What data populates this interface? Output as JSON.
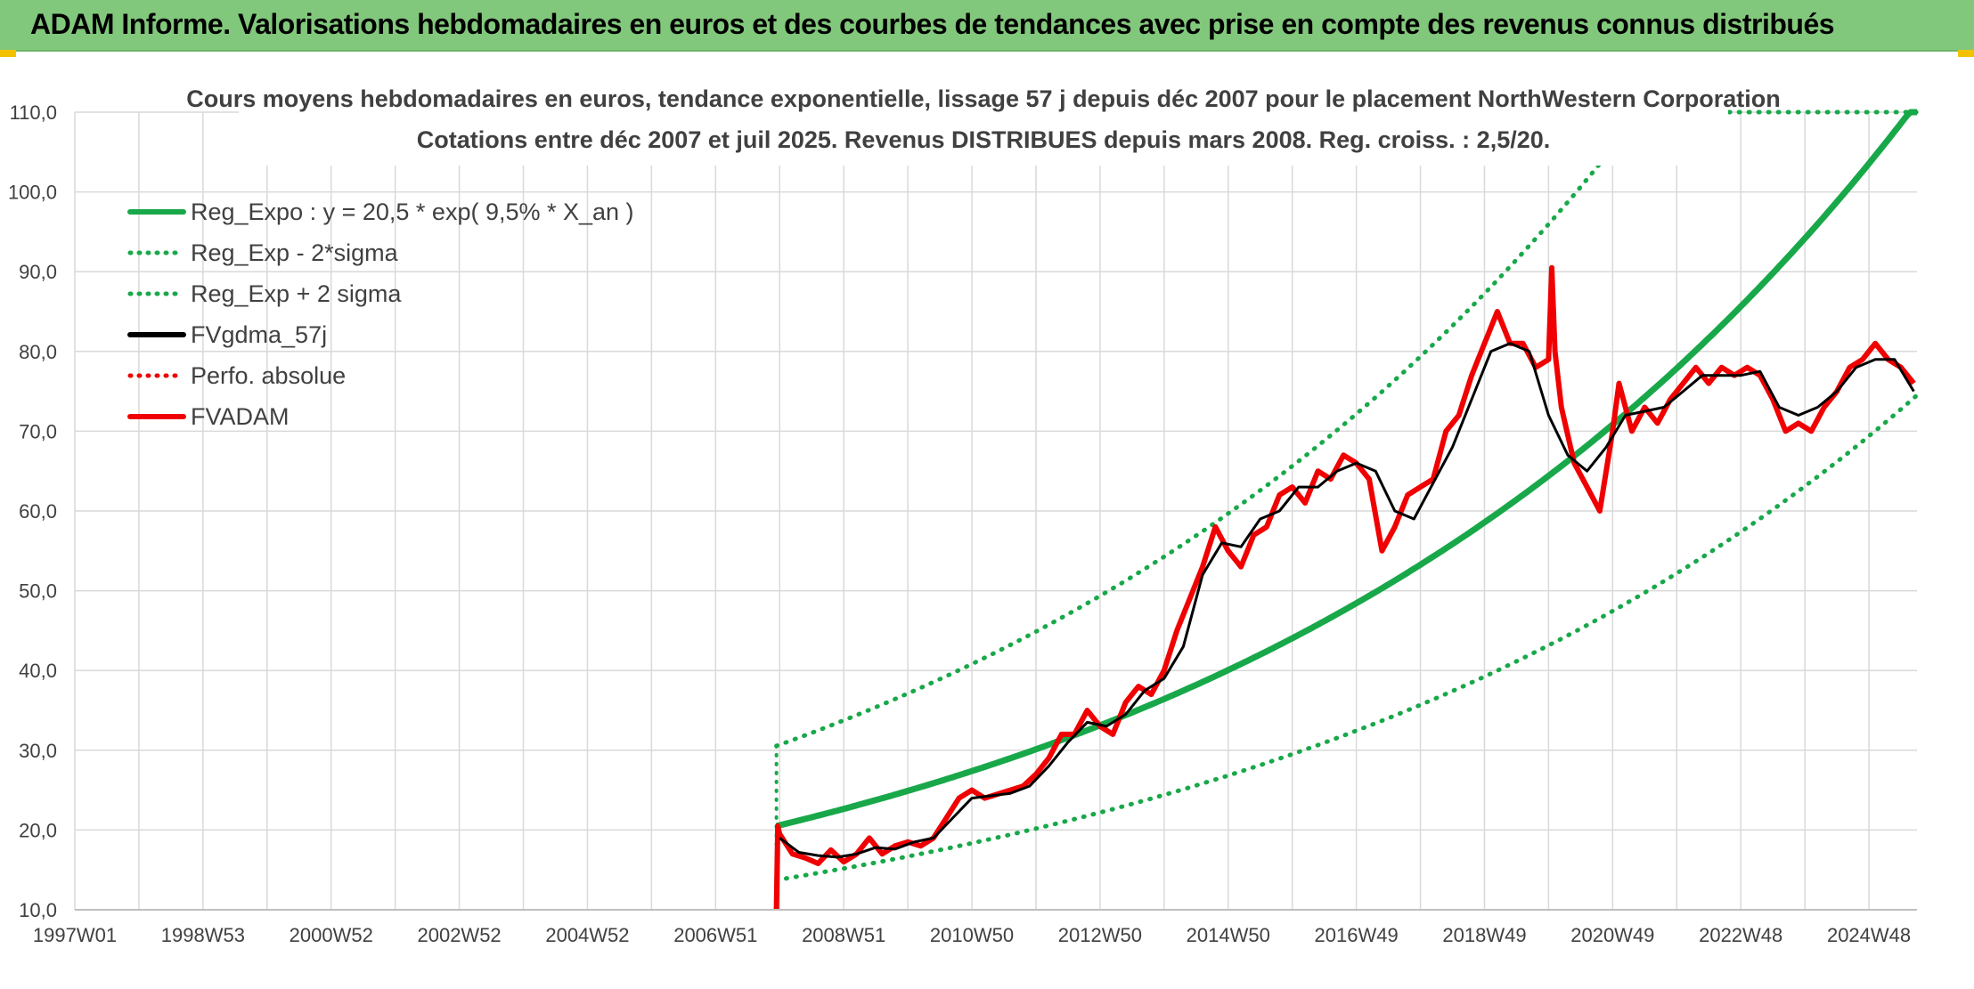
{
  "banner": {
    "title": "ADAM Informe. Valorisations hebdomadaires en euros et des courbes de tendances avec prise en compte des revenus connus distribués"
  },
  "colors": {
    "banner_bg": "#82c87c",
    "reg_green": "#18a84a",
    "series_black": "#000000",
    "series_red": "#f00000",
    "grid": "#d9d9d9",
    "axis_text": "#404040"
  },
  "chart_data": {
    "type": "line",
    "title": "Cours moyens hebdomadaires en euros, tendance exponentielle, lissage 57 j depuis déc 2007 pour le placement NorthWestern Corporation",
    "subtitle": "Cotations entre déc 2007 et juil 2025. Revenus DISTRIBUES depuis mars 2008. Reg. croiss. : 2,5/20.",
    "xlabel": "",
    "ylabel": "",
    "x_tick_labels": [
      "1997W01",
      "1998W53",
      "2000W52",
      "2002W52",
      "2004W52",
      "2006W51",
      "2008W51",
      "2010W50",
      "2012W50",
      "2014W50",
      "2016W49",
      "2018W49",
      "2020W49",
      "2022W48",
      "2024W48"
    ],
    "x_tick_years": [
      1997.0,
      1999.0,
      2001.0,
      2003.0,
      2005.0,
      2007.0,
      2009.0,
      2011.0,
      2013.0,
      2015.0,
      2017.0,
      2019.0,
      2021.0,
      2023.0,
      2025.0
    ],
    "x_range": [
      1997.0,
      2025.75
    ],
    "y_tick_labels": [
      "10,0",
      "20,0",
      "30,0",
      "40,0",
      "50,0",
      "60,0",
      "70,0",
      "80,0",
      "90,0",
      "100,0",
      "110,0"
    ],
    "ylim": [
      10,
      110
    ],
    "grid": true,
    "legend_position": "top-left",
    "legend": [
      {
        "label": "Reg_Expo : y = 20,5 * exp( 9,5% *  X_an )",
        "color": "#18a84a",
        "style": "solid"
      },
      {
        "label": "Reg_Exp - 2*sigma",
        "color": "#18a84a",
        "style": "dotted"
      },
      {
        "label": "Reg_Exp + 2 sigma",
        "color": "#18a84a",
        "style": "dotted"
      },
      {
        "label": "FVgdma_57j",
        "color": "#000000",
        "style": "solid"
      },
      {
        "label": "Perfo. absolue",
        "color": "#f00000",
        "style": "dotted"
      },
      {
        "label": "FVADAM",
        "color": "#f00000",
        "style": "solid"
      }
    ],
    "regression": {
      "a": 20.5,
      "b": 0.095,
      "start_year": 2007.95,
      "end_year": 2025.75,
      "lower_factor": 0.67,
      "upper_factor": 1.49,
      "cap": 110
    },
    "series": [
      {
        "name": "FVgdma_57j",
        "x": [
          2008.0,
          2008.3,
          2008.6,
          2008.9,
          2009.2,
          2009.5,
          2009.8,
          2010.1,
          2010.4,
          2010.7,
          2011.0,
          2011.3,
          2011.6,
          2011.9,
          2012.2,
          2012.5,
          2012.8,
          2013.1,
          2013.4,
          2013.7,
          2014.0,
          2014.3,
          2014.6,
          2014.9,
          2015.2,
          2015.5,
          2015.8,
          2016.1,
          2016.4,
          2016.7,
          2017.0,
          2017.3,
          2017.6,
          2017.9,
          2018.2,
          2018.5,
          2018.8,
          2019.1,
          2019.4,
          2019.7,
          2020.0,
          2020.3,
          2020.6,
          2020.9,
          2021.2,
          2021.5,
          2021.8,
          2022.1,
          2022.4,
          2022.7,
          2023.0,
          2023.3,
          2023.6,
          2023.9,
          2024.2,
          2024.5,
          2024.8,
          2025.1,
          2025.4,
          2025.7
        ],
        "values": [
          19.0,
          17.2,
          16.8,
          16.6,
          17.0,
          17.8,
          17.6,
          18.5,
          19.0,
          21.5,
          24.0,
          24.3,
          24.6,
          25.5,
          28.0,
          31.0,
          33.5,
          33.0,
          34.5,
          37.5,
          39.0,
          43.0,
          52.0,
          56.0,
          55.5,
          59.0,
          60.0,
          63.0,
          63.0,
          65.0,
          66.0,
          65.0,
          60.0,
          59.0,
          63.5,
          68.0,
          74.0,
          80.0,
          81.0,
          80.0,
          72.0,
          67.0,
          65.0,
          68.0,
          72.0,
          72.5,
          73.0,
          75.0,
          77.0,
          77.0,
          77.0,
          77.5,
          73.0,
          72.0,
          73.0,
          75.0,
          78.0,
          79.0,
          79.0,
          75.0
        ]
      },
      {
        "name": "FVADAM",
        "x": [
          2007.95,
          2007.97,
          2008.0,
          2008.2,
          2008.4,
          2008.6,
          2008.8,
          2009.0,
          2009.2,
          2009.4,
          2009.6,
          2009.8,
          2010.0,
          2010.2,
          2010.4,
          2010.6,
          2010.8,
          2011.0,
          2011.2,
          2011.4,
          2011.6,
          2011.8,
          2012.0,
          2012.2,
          2012.4,
          2012.6,
          2012.8,
          2013.0,
          2013.2,
          2013.4,
          2013.6,
          2013.8,
          2014.0,
          2014.2,
          2014.4,
          2014.6,
          2014.8,
          2015.0,
          2015.2,
          2015.4,
          2015.6,
          2015.8,
          2016.0,
          2016.2,
          2016.4,
          2016.6,
          2016.8,
          2017.0,
          2017.2,
          2017.4,
          2017.6,
          2017.8,
          2018.0,
          2018.2,
          2018.4,
          2018.6,
          2018.8,
          2019.0,
          2019.2,
          2019.4,
          2019.6,
          2019.8,
          2020.0,
          2020.05,
          2020.1,
          2020.2,
          2020.4,
          2020.6,
          2020.8,
          2021.0,
          2021.1,
          2021.3,
          2021.5,
          2021.7,
          2021.9,
          2022.1,
          2022.3,
          2022.5,
          2022.7,
          2022.9,
          2023.1,
          2023.3,
          2023.5,
          2023.7,
          2023.9,
          2024.1,
          2024.3,
          2024.5,
          2024.7,
          2024.9,
          2025.1,
          2025.3,
          2025.5,
          2025.7
        ],
        "values": [
          10.0,
          20.5,
          19.5,
          17.0,
          16.5,
          15.8,
          17.5,
          16.0,
          17.0,
          19.0,
          17.0,
          18.0,
          18.5,
          18.0,
          19.0,
          21.5,
          24.0,
          25.0,
          24.0,
          24.5,
          25.0,
          25.5,
          27.0,
          29.0,
          32.0,
          32.0,
          35.0,
          33.0,
          32.0,
          36.0,
          38.0,
          37.0,
          40.0,
          45.0,
          49.0,
          53.0,
          58.0,
          55.0,
          53.0,
          57.0,
          58.0,
          62.0,
          63.0,
          61.0,
          65.0,
          64.0,
          67.0,
          66.0,
          64.0,
          55.0,
          58.0,
          62.0,
          63.0,
          64.0,
          70.0,
          72.0,
          77.0,
          81.0,
          85.0,
          81.0,
          81.0,
          78.0,
          79.0,
          90.5,
          80.0,
          73.0,
          66.0,
          63.0,
          60.0,
          70.0,
          76.0,
          70.0,
          73.0,
          71.0,
          74.0,
          76.0,
          78.0,
          76.0,
          78.0,
          77.0,
          78.0,
          77.0,
          74.0,
          70.0,
          71.0,
          70.0,
          73.0,
          75.0,
          78.0,
          79.0,
          81.0,
          79.0,
          78.0,
          76.0
        ]
      }
    ]
  }
}
